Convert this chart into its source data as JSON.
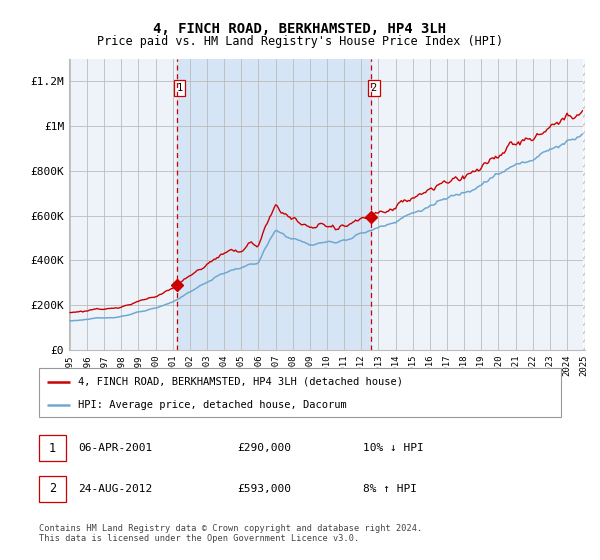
{
  "title": "4, FINCH ROAD, BERKHAMSTED, HP4 3LH",
  "subtitle": "Price paid vs. HM Land Registry's House Price Index (HPI)",
  "legend_property": "4, FINCH ROAD, BERKHAMSTED, HP4 3LH (detached house)",
  "legend_hpi": "HPI: Average price, detached house, Dacorum",
  "transaction1_date": "06-APR-2001",
  "transaction1_price": 290000,
  "transaction1_note": "10% ↓ HPI",
  "transaction2_date": "24-AUG-2012",
  "transaction2_price": 593000,
  "transaction2_note": "8% ↑ HPI",
  "footnote": "Contains HM Land Registry data © Crown copyright and database right 2024.\nThis data is licensed under the Open Government Licence v3.0.",
  "bg_color": "#ffffff",
  "plot_bg_color": "#eef3fa",
  "highlight_color": "#d6e5f5",
  "grid_color": "#bbbbbb",
  "hpi_color": "#6fa8d0",
  "property_color": "#cc0000",
  "marker_color": "#cc0000",
  "dashed_line_color": "#cc0000",
  "ylim": [
    0,
    1300000
  ],
  "yticks": [
    0,
    200000,
    400000,
    600000,
    800000,
    1000000,
    1200000
  ],
  "ytick_labels": [
    "£0",
    "£200K",
    "£400K",
    "£600K",
    "£800K",
    "£1M",
    "£1.2M"
  ],
  "x_start_year": 1995,
  "x_end_year": 2025
}
